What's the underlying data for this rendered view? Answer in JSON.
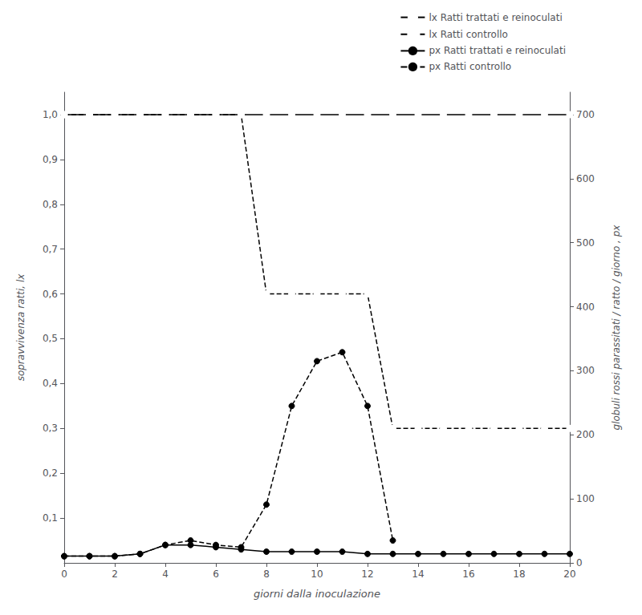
{
  "chart_data": {
    "type": "line",
    "xlabel": "giorni dalla inoculazione",
    "ylabel": "sopravvivenza ratti, lx",
    "y2label": "globuli rossi parassitati / ratto / giorno , px",
    "xlim": [
      0,
      20
    ],
    "xticks": [
      0,
      2,
      4,
      6,
      8,
      10,
      12,
      14,
      16,
      18,
      20
    ],
    "ylim": [
      0.0,
      1.05
    ],
    "yticks": [
      {
        "value": 0.1,
        "label": "0,1"
      },
      {
        "value": 0.2,
        "label": "0,2"
      },
      {
        "value": 0.3,
        "label": "0,3"
      },
      {
        "value": 0.4,
        "label": "0,4"
      },
      {
        "value": 0.5,
        "label": "0,5"
      },
      {
        "value": 0.6,
        "label": "0,6"
      },
      {
        "value": 0.7,
        "label": "0,7"
      },
      {
        "value": 0.8,
        "label": "0,8"
      },
      {
        "value": 0.9,
        "label": "0,9"
      },
      {
        "value": 1.0,
        "label": "1,0"
      }
    ],
    "y2lim": [
      0,
      735
    ],
    "y2ticks": [
      0,
      100,
      200,
      300,
      400,
      500,
      600,
      700
    ],
    "grid": false,
    "legend": "upper right",
    "series": [
      {
        "name": "lx Ratti trattati e reinoculati",
        "color": "#000000",
        "line_style": "solid",
        "marker": "open_circle",
        "x": [
          0,
          1,
          2,
          3,
          4,
          5,
          6,
          7,
          8,
          9,
          10,
          11,
          12,
          13,
          14,
          15,
          16,
          17,
          18,
          19,
          20
        ],
        "values": [
          1.0,
          1.0,
          1.0,
          1.0,
          1.0,
          1.0,
          1.0,
          1.0,
          1.0,
          1.0,
          1.0,
          1.0,
          1.0,
          1.0,
          1.0,
          1.0,
          1.0,
          1.0,
          1.0,
          1.0,
          1.0
        ]
      },
      {
        "name": "lx Ratti controllo",
        "color": "#000000",
        "line_style": "dashed",
        "marker": "open_circle",
        "x": [
          0,
          1,
          2,
          3,
          4,
          5,
          6,
          7,
          8,
          9,
          10,
          11,
          12,
          13,
          14,
          15,
          16,
          17,
          18,
          19,
          20
        ],
        "values": [
          1.0,
          1.0,
          1.0,
          1.0,
          1.0,
          1.0,
          1.0,
          1.0,
          0.6,
          0.6,
          0.6,
          0.6,
          0.6,
          0.3,
          0.3,
          0.3,
          0.3,
          0.3,
          0.3,
          0.3,
          0.3
        ]
      },
      {
        "name": "px Ratti trattati e reinoculati",
        "color": "#000000",
        "line_style": "solid",
        "marker": "filled_circle",
        "x": [
          0,
          1,
          2,
          3,
          4,
          5,
          6,
          7,
          8,
          9,
          10,
          11,
          12,
          13,
          14,
          15,
          16,
          17,
          18,
          19,
          20
        ],
        "values": [
          0.015,
          0.015,
          0.015,
          0.02,
          0.04,
          0.04,
          0.035,
          0.03,
          0.025,
          0.025,
          0.025,
          0.025,
          0.02,
          0.02,
          0.02,
          0.02,
          0.02,
          0.02,
          0.02,
          0.02,
          0.02
        ]
      },
      {
        "name": "px Ratti controllo",
        "color": "#000000",
        "line_style": "dashed",
        "marker": "filled_circle",
        "x": [
          0,
          1,
          2,
          3,
          4,
          5,
          6,
          7,
          8,
          9,
          10,
          11,
          12,
          13
        ],
        "values": [
          0.015,
          0.015,
          0.015,
          0.02,
          0.04,
          0.05,
          0.04,
          0.035,
          0.13,
          0.35,
          0.45,
          0.47,
          0.35,
          0.05
        ]
      }
    ]
  }
}
